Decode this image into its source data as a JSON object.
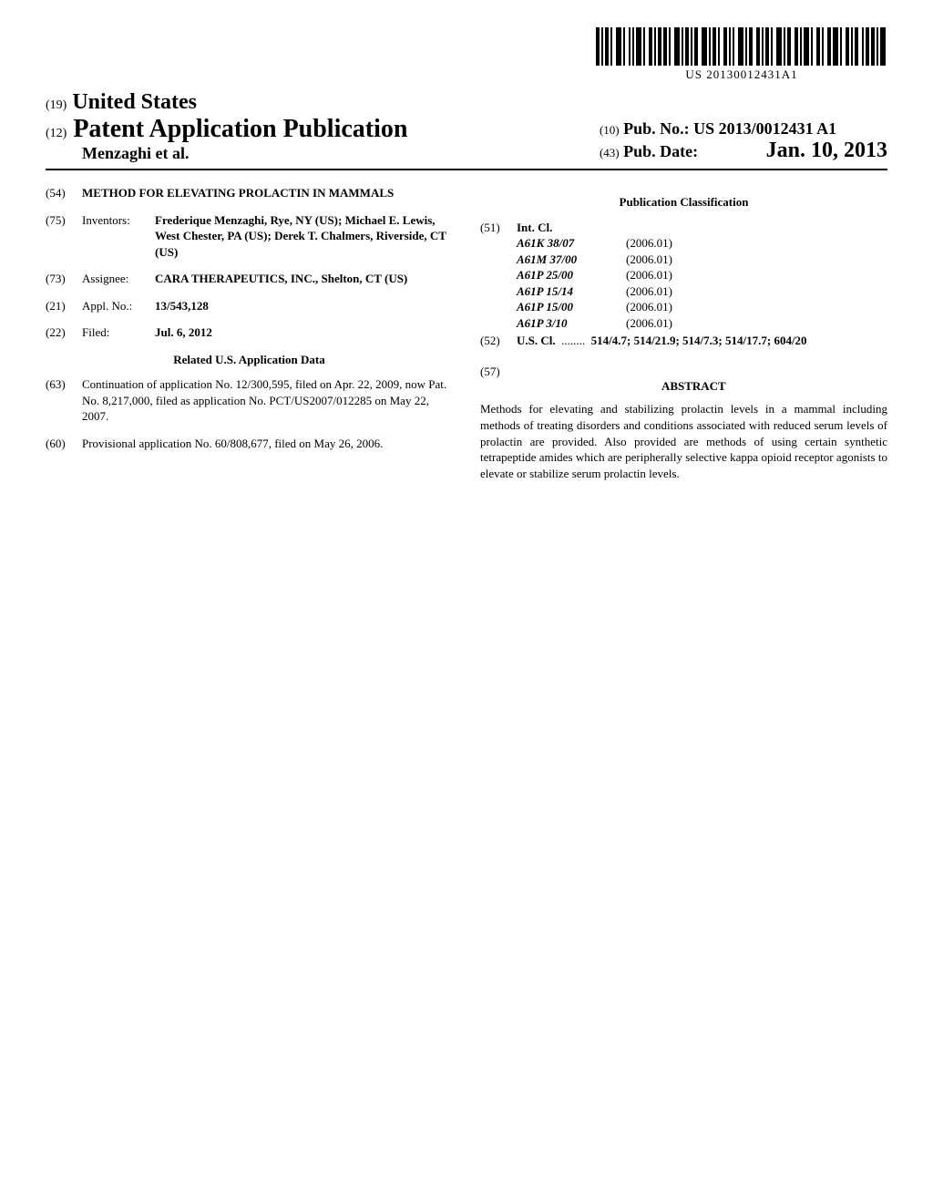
{
  "barcode_text": "US 20130012431A1",
  "header": {
    "country_code": "(19)",
    "country": "United States",
    "pub_type_code": "(12)",
    "pub_type": "Patent Application Publication",
    "authors_line": "Menzaghi et al.",
    "pubno_code": "(10)",
    "pubno_label": "Pub. No.:",
    "pubno": "US 2013/0012431 A1",
    "pubdate_code": "(43)",
    "pubdate_label": "Pub. Date:",
    "pubdate": "Jan. 10, 2013"
  },
  "left": {
    "title_code": "(54)",
    "title": "METHOD FOR ELEVATING PROLACTIN IN MAMMALS",
    "inventors_code": "(75)",
    "inventors_label": "Inventors:",
    "inventors": "Frederique Menzaghi, Rye, NY (US); Michael E. Lewis, West Chester, PA (US); Derek T. Chalmers, Riverside, CT (US)",
    "assignee_code": "(73)",
    "assignee_label": "Assignee:",
    "assignee": "CARA THERAPEUTICS, INC., Shelton, CT (US)",
    "applno_code": "(21)",
    "applno_label": "Appl. No.:",
    "applno": "13/543,128",
    "filed_code": "(22)",
    "filed_label": "Filed:",
    "filed": "Jul. 6, 2012",
    "related_heading": "Related U.S. Application Data",
    "continuation_code": "(63)",
    "continuation": "Continuation of application No. 12/300,595, filed on Apr. 22, 2009, now Pat. No. 8,217,000, filed as application No. PCT/US2007/012285 on May 22, 2007.",
    "provisional_code": "(60)",
    "provisional": "Provisional application No. 60/808,677, filed on May 26, 2006."
  },
  "right": {
    "classification_heading": "Publication Classification",
    "intcl_code": "(51)",
    "intcl_label": "Int. Cl.",
    "intcl": [
      {
        "cls": "A61K 38/07",
        "ver": "(2006.01)"
      },
      {
        "cls": "A61M 37/00",
        "ver": "(2006.01)"
      },
      {
        "cls": "A61P 25/00",
        "ver": "(2006.01)"
      },
      {
        "cls": "A61P 15/14",
        "ver": "(2006.01)"
      },
      {
        "cls": "A61P 15/00",
        "ver": "(2006.01)"
      },
      {
        "cls": "A61P 3/10",
        "ver": "(2006.01)"
      }
    ],
    "uscl_code": "(52)",
    "uscl_label": "U.S. Cl.",
    "uscl_dots": "........",
    "uscl": "514/4.7; 514/21.9; 514/7.3; 514/17.7; 604/20",
    "abstract_code": "(57)",
    "abstract_heading": "ABSTRACT",
    "abstract": "Methods for elevating and stabilizing prolactin levels in a mammal including methods of treating disorders and conditions associated with reduced serum levels of prolactin are provided. Also provided are methods of using certain synthetic tetrapeptide amides which are peripherally selective kappa opioid receptor agonists to elevate or stabilize serum prolactin levels."
  }
}
